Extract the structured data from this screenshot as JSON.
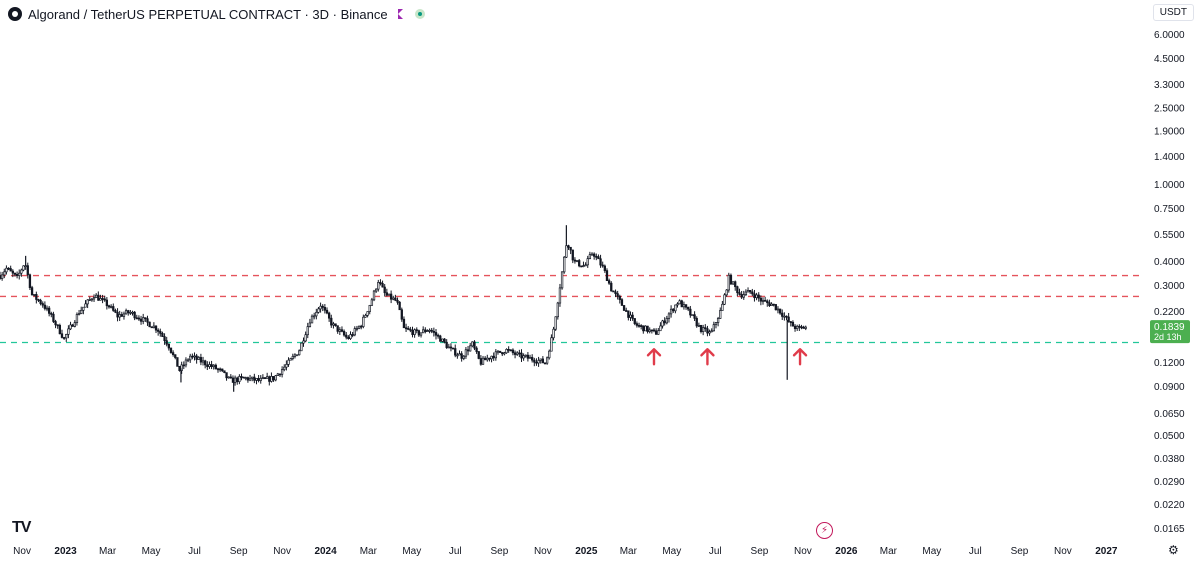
{
  "header": {
    "title": "Algorand / TetherUS PERPETUAL CONTRACT · 3D · Binance",
    "currency": "USDT"
  },
  "chart_data": {
    "type": "candlestick",
    "symbol": "Algorand / TetherUS PERPETUAL CONTRACT",
    "interval": "3D",
    "exchange": "Binance",
    "y_scale": "log",
    "ylim": [
      0.0145,
      7.0
    ],
    "y_ticks": [
      6.0,
      4.5,
      3.3,
      2.5,
      1.9,
      1.4,
      1.0,
      0.75,
      0.55,
      0.4,
      0.3,
      0.22,
      0.12,
      0.09,
      0.065,
      0.05,
      0.038,
      0.029,
      0.022,
      0.0165
    ],
    "y_tick_labels": [
      "6.0000",
      "4.5000",
      "3.3000",
      "2.5000",
      "1.9000",
      "1.4000",
      "1.0000",
      "0.7500",
      "0.5500",
      "0.4000",
      "0.3000",
      "0.2200",
      "0.1200",
      "0.0900",
      "0.0650",
      "0.0500",
      "0.0380",
      "0.0290",
      "0.0220",
      "0.0165"
    ],
    "x_range": [
      "2022-10-01",
      "2027-02-20"
    ],
    "x_ticks": [
      {
        "date": "2022-11-01",
        "label": "Nov",
        "bold": false
      },
      {
        "date": "2023-01-01",
        "label": "2023",
        "bold": true
      },
      {
        "date": "2023-03-01",
        "label": "Mar",
        "bold": false
      },
      {
        "date": "2023-05-01",
        "label": "May",
        "bold": false
      },
      {
        "date": "2023-07-01",
        "label": "Jul",
        "bold": false
      },
      {
        "date": "2023-09-01",
        "label": "Sep",
        "bold": false
      },
      {
        "date": "2023-11-01",
        "label": "Nov",
        "bold": false
      },
      {
        "date": "2024-01-01",
        "label": "2024",
        "bold": true
      },
      {
        "date": "2024-03-01",
        "label": "Mar",
        "bold": false
      },
      {
        "date": "2024-05-01",
        "label": "May",
        "bold": false
      },
      {
        "date": "2024-07-01",
        "label": "Jul",
        "bold": false
      },
      {
        "date": "2024-09-01",
        "label": "Sep",
        "bold": false
      },
      {
        "date": "2024-11-01",
        "label": "Nov",
        "bold": false
      },
      {
        "date": "2025-01-01",
        "label": "2025",
        "bold": true
      },
      {
        "date": "2025-03-01",
        "label": "Mar",
        "bold": false
      },
      {
        "date": "2025-05-01",
        "label": "May",
        "bold": false
      },
      {
        "date": "2025-07-01",
        "label": "Jul",
        "bold": false
      },
      {
        "date": "2025-09-01",
        "label": "Sep",
        "bold": false
      },
      {
        "date": "2025-11-01",
        "label": "Nov",
        "bold": false
      },
      {
        "date": "2026-01-01",
        "label": "2026",
        "bold": true
      },
      {
        "date": "2026-03-01",
        "label": "Mar",
        "bold": false
      },
      {
        "date": "2026-05-01",
        "label": "May",
        "bold": false
      },
      {
        "date": "2026-07-01",
        "label": "Jul",
        "bold": false
      },
      {
        "date": "2026-09-01",
        "label": "Sep",
        "bold": false
      },
      {
        "date": "2026-11-01",
        "label": "Nov",
        "bold": false
      },
      {
        "date": "2027-01-01",
        "label": "2027",
        "bold": true
      }
    ],
    "price_path": [
      [
        "2022-10-01",
        0.34
      ],
      [
        "2022-10-10",
        0.37
      ],
      [
        "2022-10-25",
        0.33
      ],
      [
        "2022-11-05",
        0.4
      ],
      [
        "2022-11-15",
        0.27
      ],
      [
        "2022-12-01",
        0.24
      ],
      [
        "2022-12-15",
        0.2
      ],
      [
        "2022-12-30",
        0.16
      ],
      [
        "2023-01-20",
        0.22
      ],
      [
        "2023-02-10",
        0.27
      ],
      [
        "2023-03-01",
        0.24
      ],
      [
        "2023-03-15",
        0.21
      ],
      [
        "2023-04-01",
        0.22
      ],
      [
        "2023-04-20",
        0.2
      ],
      [
        "2023-05-10",
        0.18
      ],
      [
        "2023-05-25",
        0.15
      ],
      [
        "2023-06-10",
        0.11
      ],
      [
        "2023-06-25",
        0.13
      ],
      [
        "2023-07-15",
        0.12
      ],
      [
        "2023-08-05",
        0.11
      ],
      [
        "2023-08-20",
        0.097
      ],
      [
        "2023-09-10",
        0.1
      ],
      [
        "2023-09-30",
        0.097
      ],
      [
        "2023-10-20",
        0.1
      ],
      [
        "2023-11-10",
        0.12
      ],
      [
        "2023-11-25",
        0.14
      ],
      [
        "2023-12-10",
        0.2
      ],
      [
        "2023-12-25",
        0.24
      ],
      [
        "2024-01-10",
        0.19
      ],
      [
        "2024-02-01",
        0.16
      ],
      [
        "2024-02-20",
        0.19
      ],
      [
        "2024-03-05",
        0.25
      ],
      [
        "2024-03-15",
        0.32
      ],
      [
        "2024-03-25",
        0.27
      ],
      [
        "2024-04-10",
        0.25
      ],
      [
        "2024-04-20",
        0.18
      ],
      [
        "2024-05-10",
        0.17
      ],
      [
        "2024-05-25",
        0.18
      ],
      [
        "2024-06-10",
        0.16
      ],
      [
        "2024-06-25",
        0.14
      ],
      [
        "2024-07-10",
        0.13
      ],
      [
        "2024-07-25",
        0.15
      ],
      [
        "2024-08-05",
        0.12
      ],
      [
        "2024-08-20",
        0.13
      ],
      [
        "2024-09-10",
        0.14
      ],
      [
        "2024-09-30",
        0.13
      ],
      [
        "2024-10-20",
        0.125
      ],
      [
        "2024-11-05",
        0.12
      ],
      [
        "2024-11-15",
        0.17
      ],
      [
        "2024-11-25",
        0.3
      ],
      [
        "2024-12-05",
        0.52
      ],
      [
        "2024-12-15",
        0.4
      ],
      [
        "2024-12-30",
        0.38
      ],
      [
        "2025-01-10",
        0.45
      ],
      [
        "2025-01-25",
        0.37
      ],
      [
        "2025-02-05",
        0.29
      ],
      [
        "2025-02-20",
        0.24
      ],
      [
        "2025-03-10",
        0.19
      ],
      [
        "2025-03-25",
        0.18
      ],
      [
        "2025-04-08",
        0.17
      ],
      [
        "2025-04-25",
        0.21
      ],
      [
        "2025-05-10",
        0.25
      ],
      [
        "2025-05-25",
        0.22
      ],
      [
        "2025-06-10",
        0.18
      ],
      [
        "2025-06-25",
        0.17
      ],
      [
        "2025-07-10",
        0.23
      ],
      [
        "2025-07-20",
        0.33
      ],
      [
        "2025-08-05",
        0.27
      ],
      [
        "2025-08-20",
        0.28
      ],
      [
        "2025-09-05",
        0.25
      ],
      [
        "2025-09-20",
        0.24
      ],
      [
        "2025-10-01",
        0.22
      ],
      [
        "2025-10-15",
        0.19
      ],
      [
        "2025-10-25",
        0.18
      ],
      [
        "2025-11-05",
        0.1839
      ]
    ],
    "wicks": [
      {
        "date": "2022-11-06",
        "high": 0.43
      },
      {
        "date": "2023-06-12",
        "low": 0.095
      },
      {
        "date": "2023-08-25",
        "low": 0.085
      },
      {
        "date": "2024-12-04",
        "high": 0.62
      },
      {
        "date": "2025-10-10",
        "low": 0.098
      }
    ],
    "levels": [
      {
        "name": "resistance-upper",
        "value": 0.34,
        "color": "#e5535c",
        "style": "dashed"
      },
      {
        "name": "resistance-lower",
        "value": 0.265,
        "color": "#e5535c",
        "style": "dashed"
      },
      {
        "name": "support",
        "value": 0.153,
        "color": "#22c79a",
        "style": "dashed"
      }
    ],
    "arrows": [
      {
        "date": "2025-04-06",
        "value": 0.148,
        "color": "#e03b4a"
      },
      {
        "date": "2025-06-20",
        "value": 0.148,
        "color": "#e03b4a"
      },
      {
        "date": "2025-10-28",
        "value": 0.148,
        "color": "#e03b4a"
      }
    ],
    "last_price": {
      "value": 0.1839,
      "label": "0.1839",
      "countdown": "2d 13h",
      "color": "#4caf50"
    },
    "colors": {
      "up": "#089981",
      "down": "#131722",
      "candle_body": "#131722"
    }
  },
  "footer": {
    "bolt_icon": "⚡",
    "settings_icon": "⚙",
    "tv_logo": "TV"
  }
}
